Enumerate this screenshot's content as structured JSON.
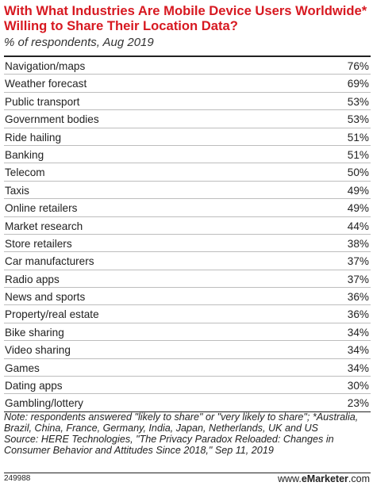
{
  "chart_data": {
    "type": "table",
    "title": "With What Industries Are Mobile Device Users Worldwide* Willing to Share Their Location Data?",
    "subtitle": "% of respondents, Aug 2019",
    "rows": [
      {
        "category": "Navigation/maps",
        "value": 76,
        "label": "76%"
      },
      {
        "category": "Weather forecast",
        "value": 69,
        "label": "69%"
      },
      {
        "category": "Public transport",
        "value": 53,
        "label": "53%"
      },
      {
        "category": "Government bodies",
        "value": 53,
        "label": "53%"
      },
      {
        "category": "Ride hailing",
        "value": 51,
        "label": "51%"
      },
      {
        "category": "Banking",
        "value": 51,
        "label": "51%"
      },
      {
        "category": "Telecom",
        "value": 50,
        "label": "50%"
      },
      {
        "category": "Taxis",
        "value": 49,
        "label": "49%"
      },
      {
        "category": "Online retailers",
        "value": 49,
        "label": "49%"
      },
      {
        "category": "Market research",
        "value": 44,
        "label": "44%"
      },
      {
        "category": "Store retailers",
        "value": 38,
        "label": "38%"
      },
      {
        "category": "Car manufacturers",
        "value": 37,
        "label": "37%"
      },
      {
        "category": "Radio apps",
        "value": 37,
        "label": "37%"
      },
      {
        "category": "News and sports",
        "value": 36,
        "label": "36%"
      },
      {
        "category": "Property/real estate",
        "value": 36,
        "label": "36%"
      },
      {
        "category": "Bike sharing",
        "value": 34,
        "label": "34%"
      },
      {
        "category": "Video sharing",
        "value": 34,
        "label": "34%"
      },
      {
        "category": "Games",
        "value": 34,
        "label": "34%"
      },
      {
        "category": "Dating apps",
        "value": 30,
        "label": "30%"
      },
      {
        "category": "Gambling/lottery",
        "value": 23,
        "label": "23%"
      }
    ]
  },
  "notes": {
    "note": "Note: respondents answered \"likely to share\" or \"very likely to share\"; *Australia, Brazil, China, France, Germany, India, Japan, Netherlands, UK and US",
    "source": "Source: HERE Technologies, \"The Privacy Paradox Reloaded: Changes in Consumer Behavior and Attitudes Since 2018,\" Sep 11, 2019"
  },
  "footer": {
    "chart_id": "249988",
    "brand_prefix": "www.",
    "brand_name": "eMarketer",
    "brand_suffix": ".com"
  }
}
